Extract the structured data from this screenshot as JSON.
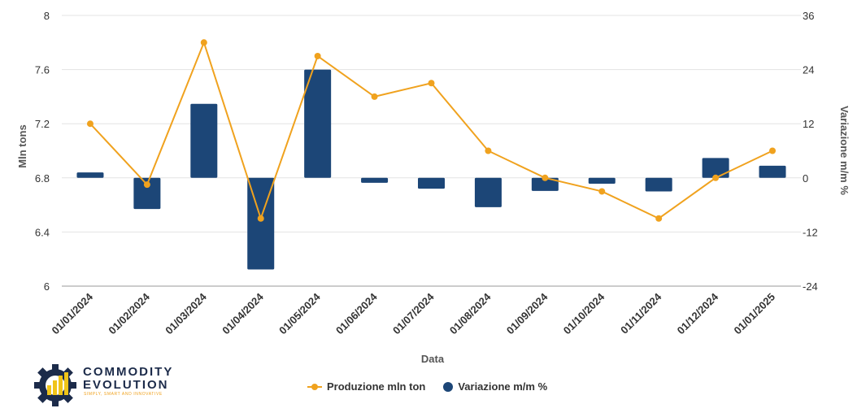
{
  "chart_data": {
    "type": "bar+line",
    "xlabel": "Data",
    "ylabel_left": "Mln tons",
    "ylabel_right": "Variazione m/m %",
    "categories": [
      "01/01/2024",
      "01/02/2024",
      "01/03/2024",
      "01/04/2024",
      "01/05/2024",
      "01/06/2024",
      "01/07/2024",
      "01/08/2024",
      "01/09/2024",
      "01/10/2024",
      "01/11/2024",
      "01/12/2024",
      "01/01/2025"
    ],
    "left_ticks": [
      "8",
      "7.6",
      "7.2",
      "6.8",
      "6.4",
      "6"
    ],
    "right_ticks": [
      "36",
      "24",
      "12",
      "0",
      "-12",
      "-24"
    ],
    "ylim_left": [
      6,
      8
    ],
    "ylim_right": [
      -24,
      36
    ],
    "series": [
      {
        "name": "Produzione mln ton",
        "kind": "line",
        "axis": "left",
        "color": "#F0A21E",
        "values": [
          7.2,
          6.75,
          7.8,
          6.5,
          7.7,
          7.4,
          7.5,
          7.0,
          6.8,
          6.7,
          6.5,
          6.8,
          7.0
        ]
      },
      {
        "name": "Variazione m/m %",
        "kind": "bar",
        "axis": "right",
        "color": "#1C4677",
        "values": [
          1.2,
          -6.9,
          16.4,
          -20.3,
          24.0,
          -1.1,
          -2.4,
          -6.5,
          -2.9,
          -1.3,
          -3.0,
          4.4,
          2.7
        ]
      }
    ],
    "grid": true,
    "legend": "bottom-center"
  },
  "logo": {
    "line1": "COMMODITY",
    "line2": "EVOLUTION",
    "tagline": "SIMPLY, SMART AND INNOVATIVE"
  }
}
